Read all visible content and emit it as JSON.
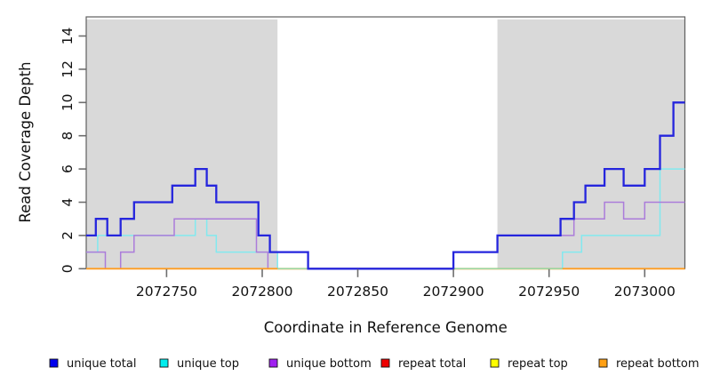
{
  "figure_label": "read-coverage-depth-plot",
  "chart_data": {
    "type": "line",
    "subtype": "step-after",
    "title": "",
    "xlabel": "Coordinate in Reference Genome",
    "ylabel": "Read Coverage Depth",
    "xlim": [
      2072708,
      2073021
    ],
    "ylim": [
      0,
      15.15
    ],
    "x_ticks": [
      {
        "value": 2072750,
        "label": "2072750"
      },
      {
        "value": 2072800,
        "label": "2072800"
      },
      {
        "value": 2072850,
        "label": "2072850"
      },
      {
        "value": 2072900,
        "label": "2072900"
      },
      {
        "value": 2072950,
        "label": "2072950"
      },
      {
        "value": 2073000,
        "label": "2073000"
      }
    ],
    "y_ticks": [
      {
        "value": 0,
        "label": "0"
      },
      {
        "value": 2,
        "label": "2"
      },
      {
        "value": 4,
        "label": "4"
      },
      {
        "value": 6,
        "label": "6"
      },
      {
        "value": 8,
        "label": "8"
      },
      {
        "value": 10,
        "label": "10"
      },
      {
        "value": 12,
        "label": "12"
      },
      {
        "value": 14,
        "label": "14"
      }
    ],
    "grid": false,
    "legend_position": "bottom",
    "shaded_regions": [
      {
        "from": 2072708,
        "to": 2072808,
        "y_from": 0,
        "y_to": 15,
        "color": "#d9d9d9"
      },
      {
        "from": 2072923,
        "to": 2073021,
        "y_from": 0,
        "y_to": 15,
        "color": "#d9d9d9"
      }
    ],
    "series": [
      {
        "name": "unique total",
        "color": "#2525dd",
        "legend_color": "#0000ee",
        "line_width": 2.3,
        "steps": [
          [
            2072708,
            2
          ],
          [
            2072713,
            3
          ],
          [
            2072719,
            2
          ],
          [
            2072726,
            3
          ],
          [
            2072733,
            4
          ],
          [
            2072753,
            5
          ],
          [
            2072765,
            6
          ],
          [
            2072771,
            5
          ],
          [
            2072776,
            4
          ],
          [
            2072798,
            2
          ],
          [
            2072804,
            1
          ],
          [
            2072824,
            0
          ],
          [
            2072900,
            1
          ],
          [
            2072923,
            2
          ],
          [
            2072956,
            3
          ],
          [
            2072963,
            4
          ],
          [
            2072969,
            5
          ],
          [
            2072979,
            6
          ],
          [
            2072989,
            5
          ],
          [
            2073000,
            6
          ],
          [
            2073008,
            8
          ],
          [
            2073015,
            10
          ]
        ]
      },
      {
        "name": "unique top",
        "color": "#82e9ef",
        "legend_color": "#00eeee",
        "line_width": 1.5,
        "steps": [
          [
            2072708,
            1
          ],
          [
            2072714,
            2
          ],
          [
            2072765,
            3
          ],
          [
            2072771,
            2
          ],
          [
            2072776,
            1
          ],
          [
            2072808,
            0
          ],
          [
            2072957,
            1
          ],
          [
            2072967,
            2
          ],
          [
            2073008,
            6
          ]
        ]
      },
      {
        "name": "unique bottom",
        "color": "#ab7cda",
        "legend_color": "#a020f0",
        "line_width": 1.5,
        "steps": [
          [
            2072708,
            1
          ],
          [
            2072718,
            0
          ],
          [
            2072726,
            1
          ],
          [
            2072733,
            2
          ],
          [
            2072754,
            3
          ],
          [
            2072797,
            1
          ],
          [
            2072803,
            0
          ],
          [
            2072900,
            1
          ],
          [
            2072923,
            2
          ],
          [
            2072963,
            3
          ],
          [
            2072979,
            4
          ],
          [
            2072989,
            3
          ],
          [
            2073000,
            4
          ]
        ]
      },
      {
        "name": "repeat total",
        "color": "#dd3333",
        "legend_color": "#ee0000",
        "line_width": 1.4,
        "steps": [
          [
            2072708,
            0
          ]
        ]
      },
      {
        "name": "repeat top",
        "color": "#ffff55",
        "legend_color": "#ffff00",
        "line_width": 1.4,
        "steps": [
          [
            2072708,
            0
          ]
        ]
      },
      {
        "name": "repeat bottom",
        "color": "#ff9d22",
        "legend_color": "#ffa014",
        "line_width": 1.8,
        "steps": [
          [
            2072708,
            0
          ]
        ]
      }
    ],
    "overlap_segment": {
      "note": "pale green stretch at depth 0 where unique-top overlaps repeat-bottom",
      "from": 2072808,
      "to": 2072957,
      "value": 0,
      "color": "#96d9a6",
      "line_width": 1.5
    },
    "legend": [
      {
        "label": "unique total",
        "color": "#0000ee"
      },
      {
        "label": "unique top",
        "color": "#00eeee"
      },
      {
        "label": "unique bottom",
        "color": "#a020f0"
      },
      {
        "label": "repeat total",
        "color": "#ee0000"
      },
      {
        "label": "repeat top",
        "color": "#ffff00"
      },
      {
        "label": "repeat bottom",
        "color": "#ffa014"
      }
    ]
  }
}
